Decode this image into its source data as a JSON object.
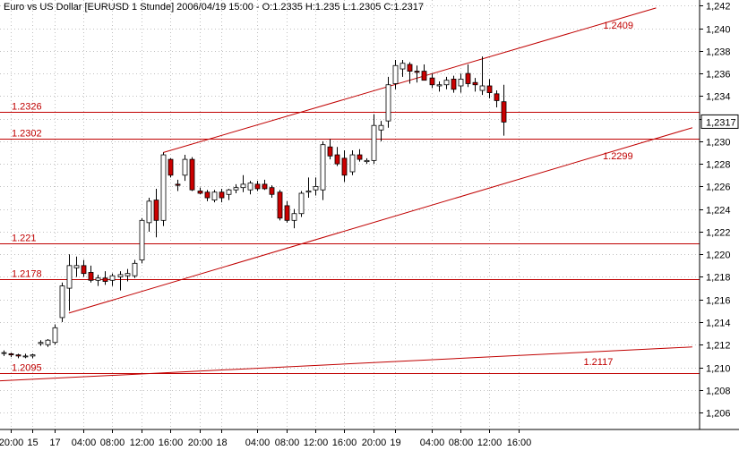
{
  "chart_data": {
    "type": "candlestick",
    "title": "Euro vs US Dollar [EURUSD  1 Stunde] 2006/04/19 15:00 - O:1.2335 H:1.235 L:1.2305 C:1.2317",
    "last_price_label": "1,2317",
    "last_price": 1.2317,
    "ylim": [
      1.2045,
      1.2425
    ],
    "y_ticks": [
      {
        "value": 1.206,
        "label": "1,206"
      },
      {
        "value": 1.208,
        "label": "1,208"
      },
      {
        "value": 1.21,
        "label": "1,210"
      },
      {
        "value": 1.212,
        "label": "1,212"
      },
      {
        "value": 1.214,
        "label": "1,214"
      },
      {
        "value": 1.216,
        "label": "1,216"
      },
      {
        "value": 1.218,
        "label": "1,218"
      },
      {
        "value": 1.22,
        "label": "1,220"
      },
      {
        "value": 1.222,
        "label": "1,222"
      },
      {
        "value": 1.224,
        "label": "1,224"
      },
      {
        "value": 1.226,
        "label": "1,226"
      },
      {
        "value": 1.228,
        "label": "1,228"
      },
      {
        "value": 1.23,
        "label": "1,230"
      },
      {
        "value": 1.232,
        "label": "1,232"
      },
      {
        "value": 1.234,
        "label": "1,234"
      },
      {
        "value": 1.236,
        "label": "1,236"
      },
      {
        "value": 1.238,
        "label": "1,238"
      },
      {
        "value": 1.24,
        "label": "1,240"
      },
      {
        "value": 1.242,
        "label": "1,242"
      }
    ],
    "x_range": [
      -0.5,
      96
    ],
    "x_ticks": [
      {
        "x": 1,
        "label": "20:00"
      },
      {
        "x": 4,
        "label": "15"
      },
      {
        "x": 7,
        "label": "17"
      },
      {
        "x": 11,
        "label": "04:00"
      },
      {
        "x": 15,
        "label": "08:00"
      },
      {
        "x": 19,
        "label": "12:00"
      },
      {
        "x": 23,
        "label": "16:00"
      },
      {
        "x": 27,
        "label": "20:00"
      },
      {
        "x": 30,
        "label": "18"
      },
      {
        "x": 35,
        "label": "04:00"
      },
      {
        "x": 39,
        "label": "08:00"
      },
      {
        "x": 43,
        "label": "12:00"
      },
      {
        "x": 47,
        "label": "16:00"
      },
      {
        "x": 51,
        "label": "20:00"
      },
      {
        "x": 54,
        "label": "19"
      },
      {
        "x": 59,
        "label": "04:00"
      },
      {
        "x": 63,
        "label": "08:00"
      },
      {
        "x": 67,
        "label": "12:00"
      },
      {
        "x": 71,
        "label": "16:00"
      }
    ],
    "candles": [
      {
        "x": 0,
        "o": 1.2113,
        "h": 1.2115,
        "l": 1.211,
        "c": 1.2113
      },
      {
        "x": 1,
        "o": 1.2112,
        "h": 1.2113,
        "l": 1.2109,
        "c": 1.2111
      },
      {
        "x": 2,
        "o": 1.2111,
        "h": 1.2112,
        "l": 1.2108,
        "c": 1.211
      },
      {
        "x": 3,
        "o": 1.211,
        "h": 1.2112,
        "l": 1.2108,
        "c": 1.211
      },
      {
        "x": 4,
        "o": 1.211,
        "h": 1.2112,
        "l": 1.2108,
        "c": 1.2111
      },
      {
        "x": 5,
        "o": 1.2121,
        "h": 1.2124,
        "l": 1.2119,
        "c": 1.2122
      },
      {
        "x": 6,
        "o": 1.212,
        "h": 1.2125,
        "l": 1.2118,
        "c": 1.2124
      },
      {
        "x": 7,
        "o": 1.2122,
        "h": 1.2138,
        "l": 1.212,
        "c": 1.2135
      },
      {
        "x": 8,
        "o": 1.2144,
        "h": 1.2175,
        "l": 1.214,
        "c": 1.2172
      },
      {
        "x": 9,
        "o": 1.217,
        "h": 1.22,
        "l": 1.215,
        "c": 1.219
      },
      {
        "x": 10,
        "o": 1.2188,
        "h": 1.2198,
        "l": 1.218,
        "c": 1.219
      },
      {
        "x": 11,
        "o": 1.219,
        "h": 1.2195,
        "l": 1.218,
        "c": 1.2183
      },
      {
        "x": 12,
        "o": 1.2184,
        "h": 1.219,
        "l": 1.2175,
        "c": 1.2177
      },
      {
        "x": 13,
        "o": 1.2177,
        "h": 1.2182,
        "l": 1.2172,
        "c": 1.2179
      },
      {
        "x": 14,
        "o": 1.2179,
        "h": 1.2185,
        "l": 1.2173,
        "c": 1.2176
      },
      {
        "x": 15,
        "o": 1.2177,
        "h": 1.2183,
        "l": 1.2172,
        "c": 1.2181
      },
      {
        "x": 16,
        "o": 1.218,
        "h": 1.2185,
        "l": 1.2168,
        "c": 1.2182
      },
      {
        "x": 17,
        "o": 1.2181,
        "h": 1.2187,
        "l": 1.2176,
        "c": 1.2183
      },
      {
        "x": 18,
        "o": 1.2181,
        "h": 1.2195,
        "l": 1.2179,
        "c": 1.2192
      },
      {
        "x": 19,
        "o": 1.2195,
        "h": 1.2232,
        "l": 1.2192,
        "c": 1.223
      },
      {
        "x": 20,
        "o": 1.2228,
        "h": 1.225,
        "l": 1.222,
        "c": 1.2247
      },
      {
        "x": 21,
        "o": 1.2248,
        "h": 1.2258,
        "l": 1.2215,
        "c": 1.223
      },
      {
        "x": 22,
        "o": 1.223,
        "h": 1.229,
        "l": 1.2225,
        "c": 1.2288
      },
      {
        "x": 23,
        "o": 1.2284,
        "h": 1.2285,
        "l": 1.2268,
        "c": 1.227
      },
      {
        "x": 24,
        "o": 1.2262,
        "h": 1.2266,
        "l": 1.2256,
        "c": 1.2261
      },
      {
        "x": 25,
        "o": 1.227,
        "h": 1.2288,
        "l": 1.2265,
        "c": 1.2284
      },
      {
        "x": 26,
        "o": 1.2284,
        "h": 1.2286,
        "l": 1.2256,
        "c": 1.2257
      },
      {
        "x": 27,
        "o": 1.2256,
        "h": 1.2259,
        "l": 1.2253,
        "c": 1.2254
      },
      {
        "x": 28,
        "o": 1.2255,
        "h": 1.2257,
        "l": 1.2247,
        "c": 1.225
      },
      {
        "x": 29,
        "o": 1.2248,
        "h": 1.2257,
        "l": 1.2246,
        "c": 1.2255
      },
      {
        "x": 30,
        "o": 1.2255,
        "h": 1.2258,
        "l": 1.2246,
        "c": 1.225
      },
      {
        "x": 31,
        "o": 1.2253,
        "h": 1.2258,
        "l": 1.2248,
        "c": 1.2257
      },
      {
        "x": 32,
        "o": 1.2257,
        "h": 1.2262,
        "l": 1.2254,
        "c": 1.2259
      },
      {
        "x": 33,
        "o": 1.2259,
        "h": 1.227,
        "l": 1.2255,
        "c": 1.2262
      },
      {
        "x": 34,
        "o": 1.2257,
        "h": 1.2265,
        "l": 1.2253,
        "c": 1.2263
      },
      {
        "x": 35,
        "o": 1.2262,
        "h": 1.2265,
        "l": 1.2256,
        "c": 1.2258
      },
      {
        "x": 36,
        "o": 1.2262,
        "h": 1.2266,
        "l": 1.2257,
        "c": 1.2258
      },
      {
        "x": 37,
        "o": 1.2259,
        "h": 1.2261,
        "l": 1.225,
        "c": 1.2253
      },
      {
        "x": 38,
        "o": 1.2255,
        "h": 1.2257,
        "l": 1.223,
        "c": 1.2232
      },
      {
        "x": 39,
        "o": 1.2243,
        "h": 1.2247,
        "l": 1.2228,
        "c": 1.223
      },
      {
        "x": 40,
        "o": 1.223,
        "h": 1.224,
        "l": 1.2223,
        "c": 1.2236
      },
      {
        "x": 41,
        "o": 1.2236,
        "h": 1.2256,
        "l": 1.2233,
        "c": 1.2254
      },
      {
        "x": 42,
        "o": 1.2255,
        "h": 1.2268,
        "l": 1.225,
        "c": 1.2256
      },
      {
        "x": 43,
        "o": 1.2257,
        "h": 1.2268,
        "l": 1.2252,
        "c": 1.226
      },
      {
        "x": 44,
        "o": 1.2257,
        "h": 1.23,
        "l": 1.2248,
        "c": 1.2297
      },
      {
        "x": 45,
        "o": 1.2295,
        "h": 1.2302,
        "l": 1.2284,
        "c": 1.2287
      },
      {
        "x": 46,
        "o": 1.2288,
        "h": 1.2295,
        "l": 1.2278,
        "c": 1.228
      },
      {
        "x": 47,
        "o": 1.2285,
        "h": 1.2292,
        "l": 1.2264,
        "c": 1.227
      },
      {
        "x": 48,
        "o": 1.2273,
        "h": 1.2292,
        "l": 1.227,
        "c": 1.2288
      },
      {
        "x": 49,
        "o": 1.2288,
        "h": 1.2293,
        "l": 1.2282,
        "c": 1.2284
      },
      {
        "x": 50,
        "o": 1.2282,
        "h": 1.2285,
        "l": 1.228,
        "c": 1.2283
      },
      {
        "x": 51,
        "o": 1.2283,
        "h": 1.2324,
        "l": 1.228,
        "c": 1.2314
      },
      {
        "x": 52,
        "o": 1.231,
        "h": 1.2318,
        "l": 1.23,
        "c": 1.2314
      },
      {
        "x": 53,
        "o": 1.2318,
        "h": 1.2357,
        "l": 1.2312,
        "c": 1.235
      },
      {
        "x": 54,
        "o": 1.2351,
        "h": 1.2372,
        "l": 1.2346,
        "c": 1.2367
      },
      {
        "x": 55,
        "o": 1.2364,
        "h": 1.2372,
        "l": 1.2357,
        "c": 1.2369
      },
      {
        "x": 56,
        "o": 1.2368,
        "h": 1.237,
        "l": 1.2351,
        "c": 1.2362
      },
      {
        "x": 57,
        "o": 1.2362,
        "h": 1.2367,
        "l": 1.2352,
        "c": 1.2361
      },
      {
        "x": 58,
        "o": 1.2362,
        "h": 1.2368,
        "l": 1.2355,
        "c": 1.2354
      },
      {
        "x": 59,
        "o": 1.2356,
        "h": 1.236,
        "l": 1.2347,
        "c": 1.235
      },
      {
        "x": 60,
        "o": 1.2349,
        "h": 1.2353,
        "l": 1.2344,
        "c": 1.235
      },
      {
        "x": 61,
        "o": 1.235,
        "h": 1.2357,
        "l": 1.2346,
        "c": 1.2354
      },
      {
        "x": 62,
        "o": 1.2355,
        "h": 1.2358,
        "l": 1.2343,
        "c": 1.2346
      },
      {
        "x": 63,
        "o": 1.2349,
        "h": 1.236,
        "l": 1.2343,
        "c": 1.2355
      },
      {
        "x": 64,
        "o": 1.236,
        "h": 1.2368,
        "l": 1.2348,
        "c": 1.2351
      },
      {
        "x": 65,
        "o": 1.2352,
        "h": 1.2356,
        "l": 1.2344,
        "c": 1.235
      },
      {
        "x": 66,
        "o": 1.2345,
        "h": 1.2375,
        "l": 1.2341,
        "c": 1.2349
      },
      {
        "x": 67,
        "o": 1.2349,
        "h": 1.2355,
        "l": 1.2338,
        "c": 1.2343
      },
      {
        "x": 68,
        "o": 1.2342,
        "h": 1.2345,
        "l": 1.233,
        "c": 1.2336
      },
      {
        "x": 69,
        "o": 1.2335,
        "h": 1.235,
        "l": 1.2305,
        "c": 1.2317
      }
    ],
    "horizontal_lines": [
      {
        "value": 1.2326,
        "label": "1.2326"
      },
      {
        "value": 1.2302,
        "label": "1.2302"
      },
      {
        "value": 1.221,
        "label": "1.221"
      },
      {
        "value": 1.2178,
        "label": "1.2178"
      },
      {
        "value": 1.2095,
        "label": "1.2095"
      }
    ],
    "trend_lines": [
      {
        "x1": 22,
        "y1": 1.229,
        "x2": 90,
        "y2": 1.2418,
        "label": "1.2409"
      },
      {
        "x1": 9,
        "y1": 1.2148,
        "x2": 95,
        "y2": 1.2312,
        "label": "1.2299"
      },
      {
        "x1": -0.5,
        "y1": 1.2088,
        "x2": 95,
        "y2": 1.2118,
        "label": "1.2117"
      }
    ],
    "colors": {
      "up_fill": "#ffffff",
      "down_fill": "#cc0000",
      "candle_outline": "#000000",
      "annotation": "#c00000",
      "grid": "#c0c0c0"
    }
  }
}
